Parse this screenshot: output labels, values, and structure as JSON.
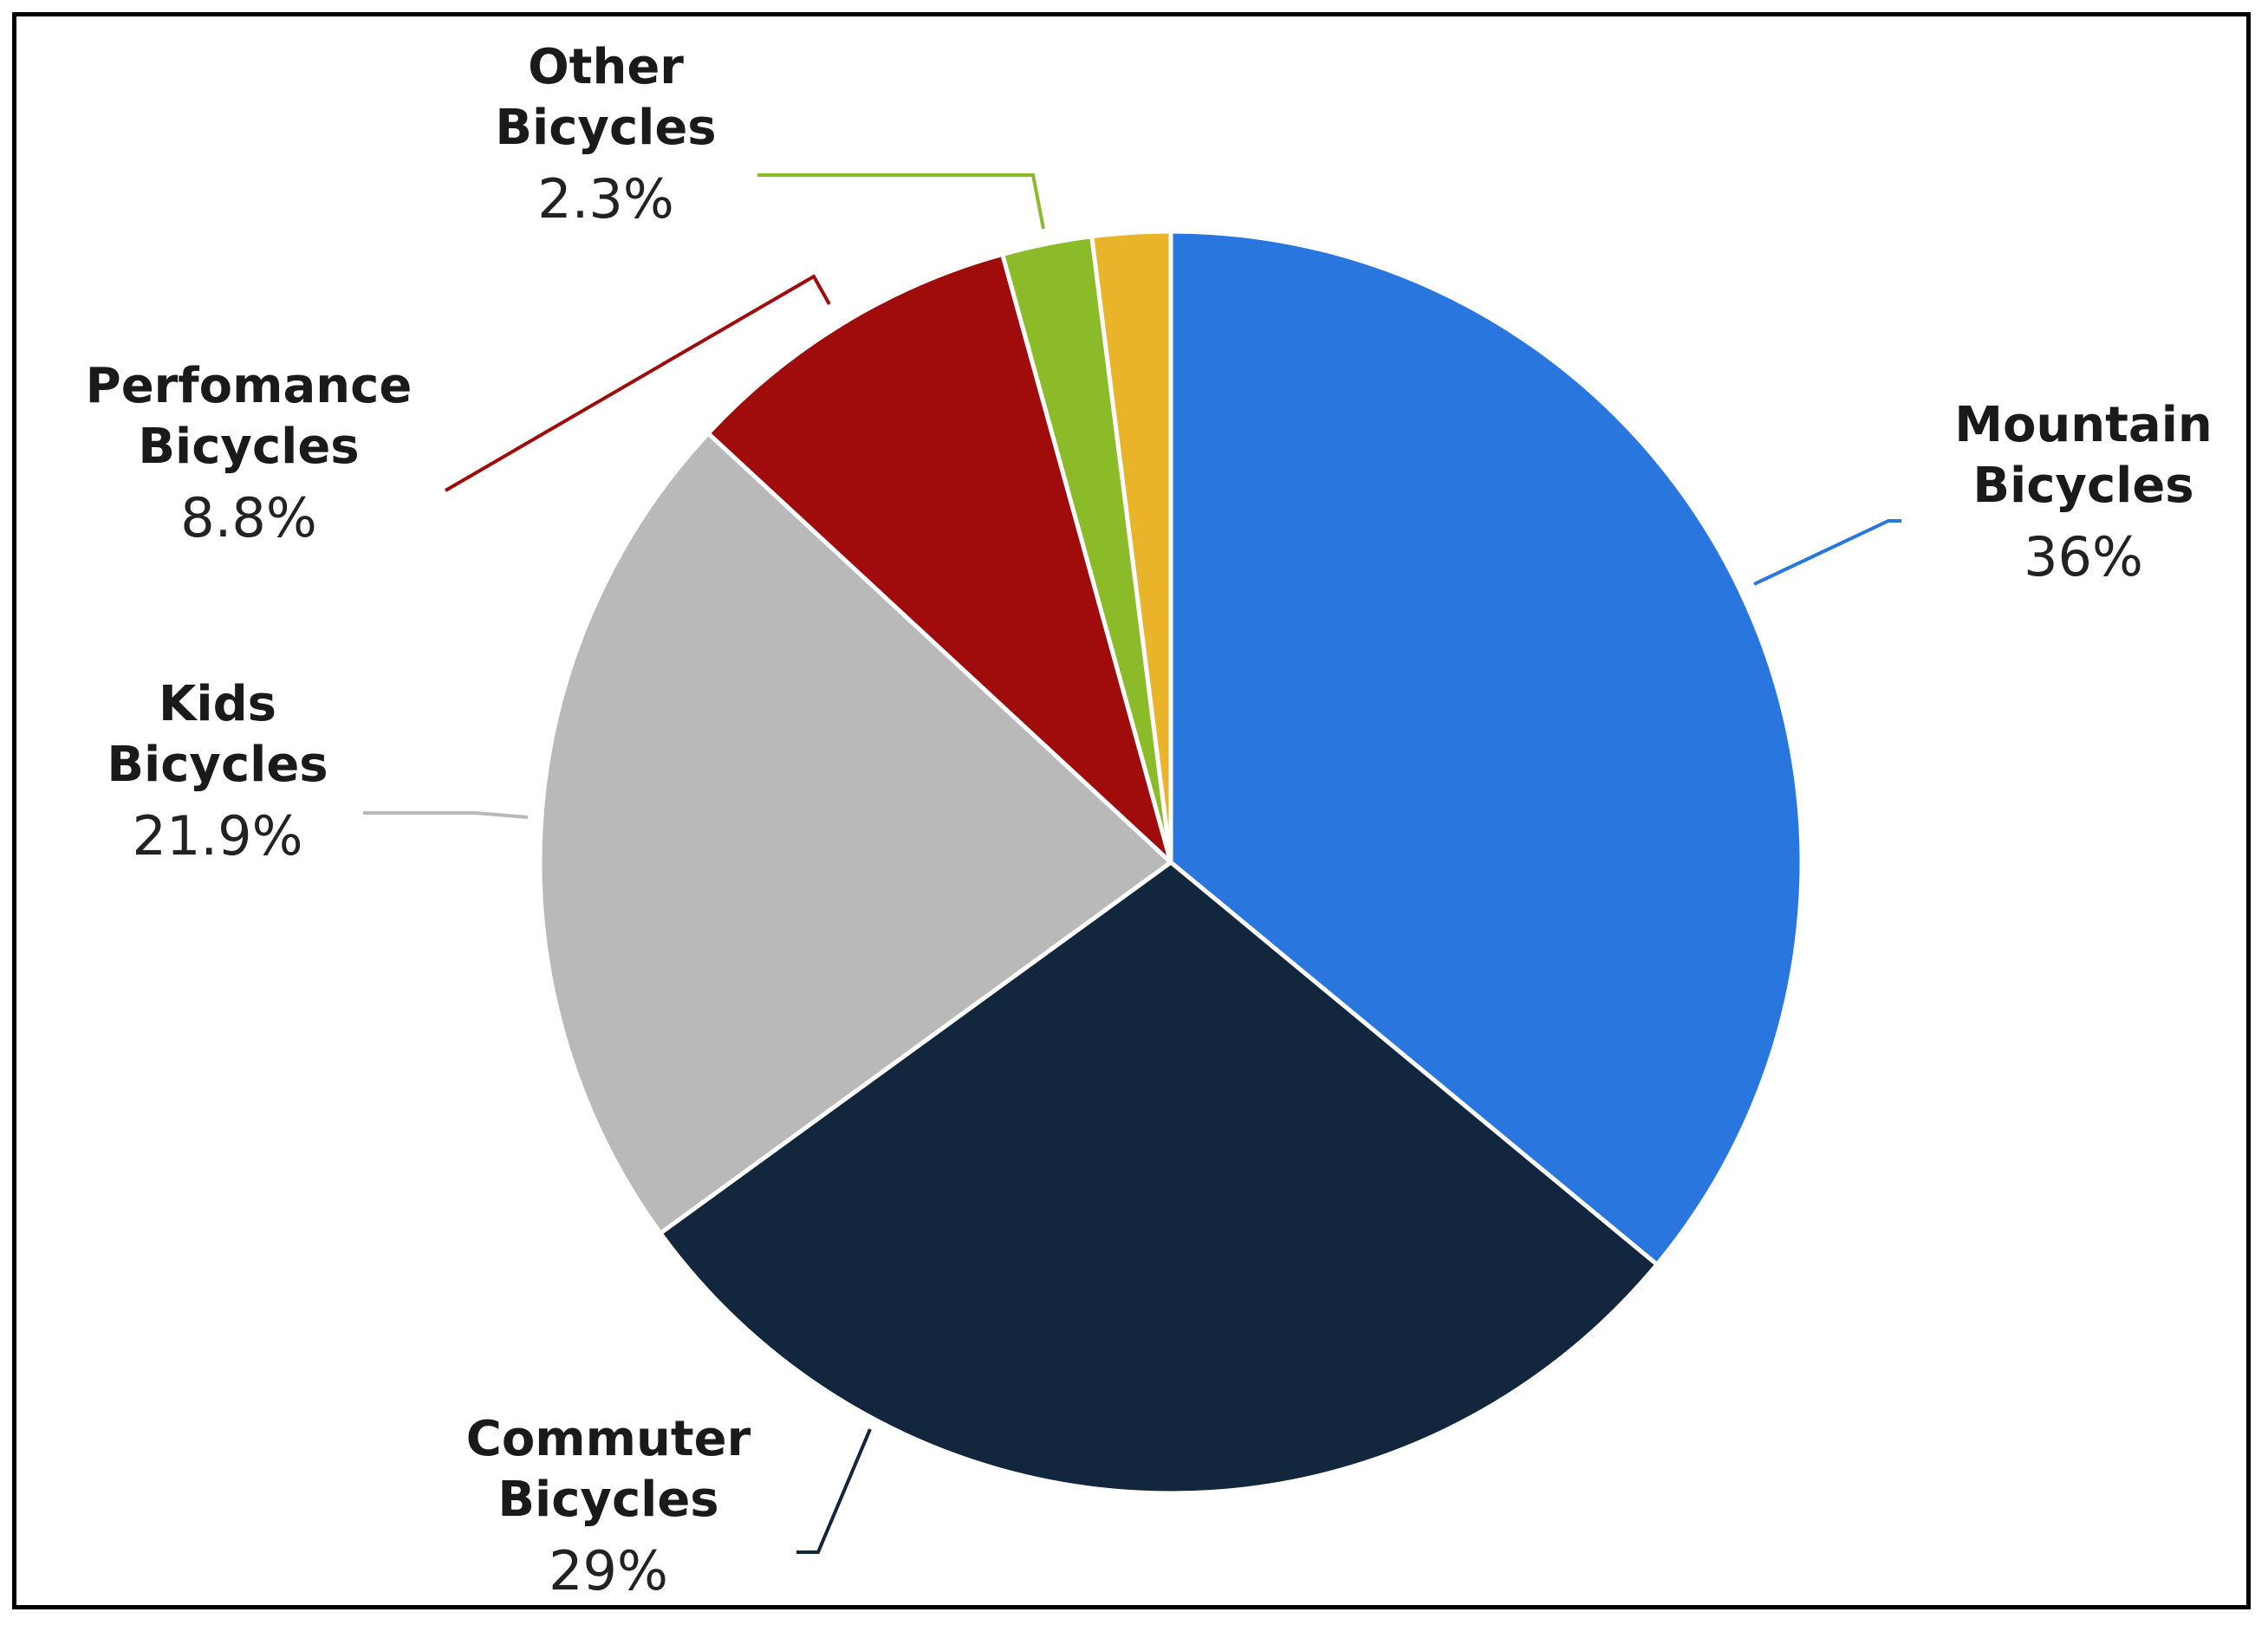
{
  "chart_data": {
    "type": "pie",
    "title": "",
    "start_angle_deg": 0,
    "direction": "clockwise",
    "slices": [
      {
        "name": "Mountain Bicycles",
        "line1": "Mountain",
        "line2": "Bicycles",
        "value": 36,
        "label": "36%",
        "color": "#2876DE",
        "show_label": true
      },
      {
        "name": "Commuter Bicycles",
        "line1": "Commuter",
        "line2": "Bicycles",
        "value": 29,
        "label": "29%",
        "color": "#12263D",
        "show_label": true
      },
      {
        "name": "Kids Bicycles",
        "line1": "Kids",
        "line2": "Bicycles",
        "value": 21.9,
        "label": "21.9%",
        "color": "#B9B9B9",
        "show_label": true
      },
      {
        "name": "Perfomance Bicycles",
        "line1": "Perfomance",
        "line2": "Bicycles",
        "value": 8.8,
        "label": "8.8%",
        "color": "#A00B0B",
        "show_label": true
      },
      {
        "name": "Other Bicycles",
        "line1": "Other",
        "line2": "Bicycles",
        "value": 2.3,
        "label": "2.3%",
        "color": "#8BBB28",
        "show_label": true
      },
      {
        "name": "",
        "line1": "",
        "line2": "",
        "value": 2.0,
        "label": "",
        "color": "#E9B429",
        "show_label": false
      }
    ]
  }
}
